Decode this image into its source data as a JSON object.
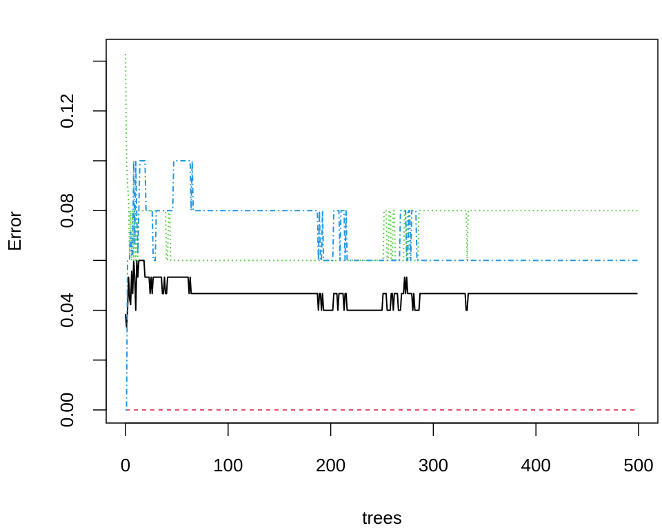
{
  "chart_data": {
    "type": "line",
    "title": "",
    "xlabel": "trees",
    "ylabel": "Error",
    "xlim": [
      0,
      500
    ],
    "ylim": [
      0,
      0.14
    ],
    "x_ticks": [
      0,
      100,
      200,
      300,
      400,
      500
    ],
    "x_tick_labels": [
      "0",
      "100",
      "200",
      "300",
      "400",
      "500"
    ],
    "y_ticks": [
      0,
      0.02,
      0.04,
      0.06,
      0.08,
      0.1,
      0.12,
      0.14
    ],
    "y_tick_labels": [
      "0.00",
      "",
      "0.04",
      "",
      "0.08",
      "",
      "0.12",
      ""
    ],
    "grid": false,
    "legend": "none",
    "series_encoding": "runs of [first_tree, last_tree, error]",
    "series": [
      {
        "color": "#000000",
        "line_style": "solid",
        "runs": [
          [
            1,
            1,
            0.0385
          ],
          [
            2,
            2,
            0.0333
          ],
          [
            3,
            3,
            0.04
          ],
          [
            4,
            4,
            0.0533
          ],
          [
            5,
            5,
            0.0444
          ],
          [
            6,
            6,
            0.0423
          ],
          [
            7,
            7,
            0.0556
          ],
          [
            8,
            8,
            0.0467
          ],
          [
            9,
            9,
            0.06
          ],
          [
            10,
            10,
            0.0533
          ],
          [
            11,
            11,
            0.04
          ],
          [
            12,
            12,
            0.06
          ],
          [
            13,
            13,
            0.0533
          ],
          [
            14,
            19,
            0.06
          ],
          [
            20,
            24,
            0.0533
          ],
          [
            25,
            25,
            0.0467
          ],
          [
            26,
            26,
            0.0533
          ],
          [
            27,
            27,
            0.0467
          ],
          [
            28,
            36,
            0.0533
          ],
          [
            37,
            38,
            0.0467
          ],
          [
            39,
            39,
            0.0533
          ],
          [
            40,
            41,
            0.0467
          ],
          [
            42,
            62,
            0.0533
          ],
          [
            63,
            63,
            0.0467
          ],
          [
            64,
            64,
            0.0533
          ],
          [
            65,
            188,
            0.0467
          ],
          [
            189,
            189,
            0.04
          ],
          [
            190,
            191,
            0.0467
          ],
          [
            192,
            192,
            0.04
          ],
          [
            193,
            193,
            0.0467
          ],
          [
            194,
            203,
            0.04
          ],
          [
            204,
            207,
            0.0467
          ],
          [
            208,
            208,
            0.04
          ],
          [
            209,
            213,
            0.0467
          ],
          [
            214,
            214,
            0.04
          ],
          [
            215,
            216,
            0.0467
          ],
          [
            217,
            251,
            0.04
          ],
          [
            252,
            255,
            0.0467
          ],
          [
            256,
            259,
            0.04
          ],
          [
            260,
            261,
            0.0467
          ],
          [
            262,
            262,
            0.04
          ],
          [
            263,
            266,
            0.0467
          ],
          [
            267,
            269,
            0.04
          ],
          [
            270,
            272,
            0.0467
          ],
          [
            273,
            273,
            0.0533
          ],
          [
            274,
            274,
            0.0467
          ],
          [
            275,
            275,
            0.0533
          ],
          [
            276,
            280,
            0.0467
          ],
          [
            281,
            281,
            0.04
          ],
          [
            282,
            282,
            0.0467
          ],
          [
            283,
            287,
            0.04
          ],
          [
            288,
            332,
            0.0467
          ],
          [
            333,
            334,
            0.04
          ],
          [
            335,
            500,
            0.0467
          ]
        ]
      },
      {
        "color": "#DF536B",
        "line_style": "dashed",
        "runs": [
          [
            1,
            500,
            0
          ]
        ]
      },
      {
        "color": "#61D04F",
        "line_style": "dotted",
        "runs": [
          [
            1,
            1,
            0.1429
          ],
          [
            2,
            2,
            0.1
          ],
          [
            3,
            3,
            0.0909
          ],
          [
            4,
            4,
            0.0833
          ],
          [
            5,
            5,
            0.0625
          ],
          [
            6,
            6,
            0.08
          ],
          [
            7,
            7,
            0.06
          ],
          [
            8,
            8,
            0.08
          ],
          [
            9,
            9,
            0.06
          ],
          [
            10,
            10,
            0.08
          ],
          [
            11,
            11,
            0.06
          ],
          [
            12,
            12,
            0.08
          ],
          [
            13,
            13,
            0.06
          ],
          [
            14,
            40,
            0.08
          ],
          [
            41,
            42,
            0.06
          ],
          [
            43,
            44,
            0.08
          ],
          [
            45,
            252,
            0.06
          ],
          [
            253,
            255,
            0.08
          ],
          [
            256,
            257,
            0.06
          ],
          [
            258,
            259,
            0.08
          ],
          [
            260,
            261,
            0.06
          ],
          [
            262,
            263,
            0.08
          ],
          [
            264,
            272,
            0.06
          ],
          [
            273,
            274,
            0.08
          ],
          [
            275,
            275,
            0.06
          ],
          [
            276,
            277,
            0.08
          ],
          [
            278,
            286,
            0.06
          ],
          [
            287,
            333,
            0.08
          ],
          [
            334,
            334,
            0.06
          ],
          [
            335,
            500,
            0.08
          ]
        ]
      },
      {
        "color": "#2297E6",
        "line_style": "dashdot",
        "runs": [
          [
            1,
            2,
            0
          ],
          [
            3,
            5,
            0.06
          ],
          [
            6,
            6,
            0.0714
          ],
          [
            7,
            8,
            0.0625
          ],
          [
            9,
            9,
            0.1
          ],
          [
            10,
            10,
            0.0667
          ],
          [
            11,
            11,
            0.1
          ],
          [
            12,
            12,
            0.0769
          ],
          [
            13,
            13,
            0.0625
          ],
          [
            14,
            14,
            0.08
          ],
          [
            15,
            20,
            0.1
          ],
          [
            21,
            27,
            0.08
          ],
          [
            28,
            30,
            0.06
          ],
          [
            31,
            47,
            0.08
          ],
          [
            48,
            64,
            0.1
          ],
          [
            65,
            65,
            0.08
          ],
          [
            66,
            66,
            0.1
          ],
          [
            67,
            188,
            0.08
          ],
          [
            189,
            189,
            0.06
          ],
          [
            190,
            190,
            0.08
          ],
          [
            191,
            192,
            0.06
          ],
          [
            193,
            193,
            0.08
          ],
          [
            194,
            203,
            0.06
          ],
          [
            204,
            209,
            0.08
          ],
          [
            210,
            210,
            0.06
          ],
          [
            211,
            214,
            0.08
          ],
          [
            215,
            215,
            0.06
          ],
          [
            216,
            216,
            0.08
          ],
          [
            217,
            268,
            0.06
          ],
          [
            269,
            274,
            0.08
          ],
          [
            275,
            276,
            0.06
          ],
          [
            277,
            278,
            0.08
          ],
          [
            279,
            279,
            0.06
          ],
          [
            280,
            284,
            0.08
          ],
          [
            285,
            500,
            0.06
          ]
        ]
      }
    ]
  }
}
